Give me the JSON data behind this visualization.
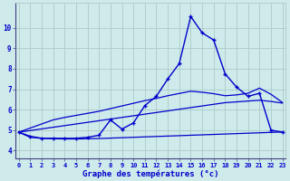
{
  "title": "Graphe des températures (°c)",
  "bg_color": "#ceeaea",
  "grid_color": "#b0c8c8",
  "line_color": "#0000cc",
  "x_ticks": [
    0,
    1,
    2,
    3,
    4,
    5,
    6,
    7,
    8,
    9,
    10,
    11,
    12,
    13,
    14,
    15,
    16,
    17,
    18,
    19,
    20,
    21,
    22,
    23
  ],
  "y_ticks": [
    4,
    5,
    6,
    7,
    8,
    9,
    10
  ],
  "ylim": [
    3.6,
    11.2
  ],
  "xlim": [
    -0.3,
    23.3
  ],
  "temp_curve": [
    4.9,
    4.7,
    4.6,
    4.6,
    4.6,
    4.6,
    4.65,
    4.75,
    5.5,
    5.05,
    5.35,
    6.2,
    6.65,
    7.5,
    8.25,
    10.55,
    9.75,
    9.4,
    7.75,
    7.1,
    6.65,
    6.8,
    5.0,
    4.9
  ],
  "line_bottom": [
    4.9,
    4.65,
    4.6,
    4.58,
    4.57,
    4.57,
    4.58,
    4.59,
    4.61,
    4.63,
    4.65,
    4.67,
    4.69,
    4.71,
    4.73,
    4.75,
    4.77,
    4.79,
    4.81,
    4.83,
    4.85,
    4.87,
    4.89,
    4.91
  ],
  "line_mid": [
    4.9,
    4.98,
    5.06,
    5.14,
    5.22,
    5.3,
    5.38,
    5.46,
    5.54,
    5.62,
    5.7,
    5.78,
    5.86,
    5.94,
    6.02,
    6.1,
    6.18,
    6.26,
    6.34,
    6.38,
    6.42,
    6.46,
    6.4,
    6.32
  ],
  "line_top": [
    4.9,
    5.1,
    5.3,
    5.5,
    5.62,
    5.72,
    5.82,
    5.92,
    6.05,
    6.18,
    6.31,
    6.44,
    6.55,
    6.68,
    6.79,
    6.9,
    6.85,
    6.78,
    6.68,
    6.72,
    6.8,
    7.05,
    6.75,
    6.35
  ]
}
